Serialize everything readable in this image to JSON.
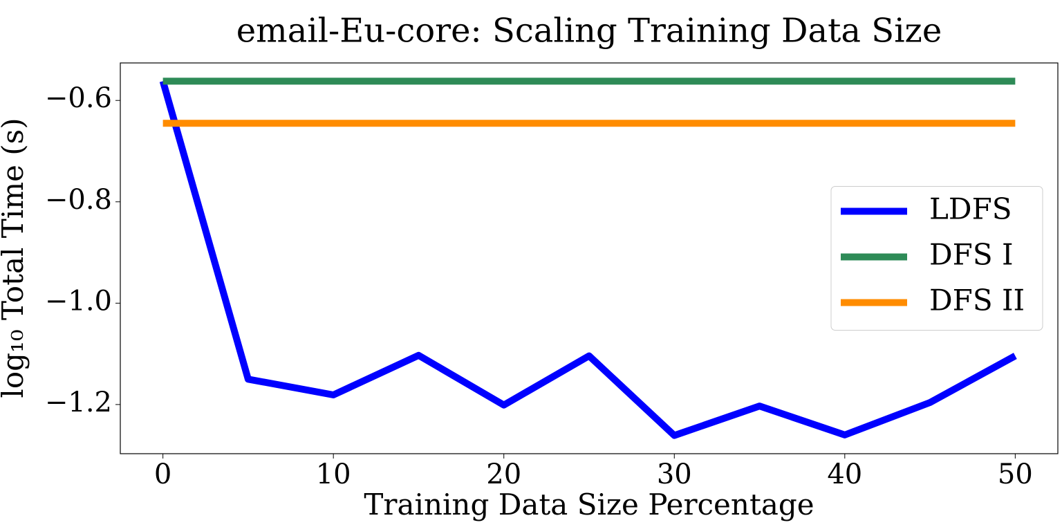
{
  "chart_data": {
    "type": "line",
    "title": "email-Eu-core: Scaling Training Data Size",
    "x_label": "Training Data Size Percentage",
    "y_label": "log₁₀ Total Time (s)",
    "x": [
      0,
      5,
      10,
      15,
      20,
      25,
      30,
      35,
      40,
      45,
      50
    ],
    "series": [
      {
        "name": "LDFS",
        "color": "#0000ff",
        "values": [
          -0.562,
          -1.15,
          -1.181,
          -1.103,
          -1.201,
          -1.104,
          -1.261,
          -1.203,
          -1.26,
          -1.196,
          -1.104
        ]
      },
      {
        "name": "DFS I",
        "color": "#2e8b57",
        "values": [
          -0.562,
          -0.562,
          -0.562,
          -0.562,
          -0.562,
          -0.562,
          -0.562,
          -0.562,
          -0.562,
          -0.562,
          -0.562
        ]
      },
      {
        "name": "DFS II",
        "color": "#ff8c00",
        "values": [
          -0.645,
          -0.645,
          -0.645,
          -0.645,
          -0.645,
          -0.645,
          -0.645,
          -0.645,
          -0.645,
          -0.645,
          -0.645
        ]
      }
    ],
    "xlim": [
      -2.5,
      52.5
    ],
    "ylim": [
      -1.297,
      -0.526
    ],
    "xticks": [
      0,
      10,
      20,
      30,
      40,
      50
    ],
    "yticks": [
      {
        "value": -0.6,
        "label": "−0.6"
      },
      {
        "value": -0.8,
        "label": "−0.8"
      },
      {
        "value": -1.0,
        "label": "−1.0"
      },
      {
        "value": -1.2,
        "label": "−1.2"
      }
    ],
    "legend": "center right",
    "grid": false
  }
}
